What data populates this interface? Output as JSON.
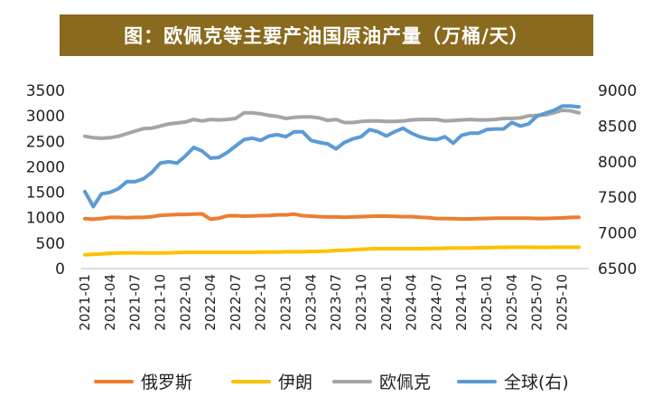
{
  "chart_data": {
    "type": "line",
    "title": "图：欧佩克等主要产油国原油产量（万桶/天）",
    "x": [
      "2021-01",
      "2021-02",
      "2021-03",
      "2021-04",
      "2021-05",
      "2021-06",
      "2021-07",
      "2021-08",
      "2021-09",
      "2021-10",
      "2021-11",
      "2021-12",
      "2022-01",
      "2022-02",
      "2022-03",
      "2022-04",
      "2022-05",
      "2022-06",
      "2022-07",
      "2022-08",
      "2022-09",
      "2022-10",
      "2022-11",
      "2022-12",
      "2023-01",
      "2023-02",
      "2023-03",
      "2023-04",
      "2023-05",
      "2023-06",
      "2023-07",
      "2023-08",
      "2023-09",
      "2023-10",
      "2023-11",
      "2023-12",
      "2024-01",
      "2024-02",
      "2024-03",
      "2024-04",
      "2024-05",
      "2024-06",
      "2024-07",
      "2024-08",
      "2024-09",
      "2024-10",
      "2024-11",
      "2024-12",
      "2025-01",
      "2025-02",
      "2025-03",
      "2025-04",
      "2025-05",
      "2025-06",
      "2025-07",
      "2025-08",
      "2025-09",
      "2025-10",
      "2025-11",
      "2025-12"
    ],
    "x_tick_labels": [
      "2021-01",
      "2021-04",
      "2021-07",
      "2021-10",
      "2022-01",
      "2022-04",
      "2022-07",
      "2022-10",
      "2023-01",
      "2023-04",
      "2023-07",
      "2023-10",
      "2024-01",
      "2024-04",
      "2024-07",
      "2024-10",
      "2025-01",
      "2025-04",
      "2025-07",
      "2025-10"
    ],
    "y_left": {
      "min": 0,
      "max": 3500,
      "step": 500,
      "ticks": [
        "0",
        "500",
        "1000",
        "1500",
        "2000",
        "2500",
        "3000",
        "3500"
      ]
    },
    "y_right": {
      "min": 6500,
      "max": 9000,
      "step": 500,
      "ticks": [
        "6500",
        "7000",
        "7500",
        "8000",
        "8500",
        "9000"
      ]
    },
    "series": [
      {
        "name": "俄罗斯",
        "axis": "left",
        "color": "#ed7d31",
        "values": [
          980,
          970,
          985,
          1005,
          1005,
          1000,
          1005,
          1005,
          1020,
          1045,
          1055,
          1060,
          1065,
          1070,
          1075,
          970,
          990,
          1035,
          1040,
          1030,
          1035,
          1040,
          1045,
          1055,
          1055,
          1070,
          1040,
          1030,
          1020,
          1015,
          1015,
          1010,
          1015,
          1020,
          1025,
          1030,
          1030,
          1025,
          1020,
          1020,
          1010,
          1000,
          985,
          980,
          980,
          975,
          978,
          980,
          985,
          990,
          990,
          990,
          990,
          990,
          985,
          985,
          990,
          995,
          1005,
          1010
        ]
      },
      {
        "name": "伊朗",
        "axis": "left",
        "color": "#ffc000",
        "values": [
          270,
          280,
          290,
          300,
          305,
          310,
          310,
          305,
          305,
          305,
          310,
          315,
          320,
          320,
          320,
          320,
          320,
          320,
          320,
          320,
          320,
          325,
          325,
          325,
          330,
          330,
          330,
          335,
          340,
          345,
          355,
          360,
          370,
          380,
          385,
          390,
          390,
          390,
          390,
          390,
          390,
          395,
          395,
          400,
          405,
          405,
          405,
          410,
          410,
          415,
          415,
          420,
          420,
          420,
          415,
          415,
          420,
          420,
          420,
          420
        ]
      },
      {
        "name": "欧佩克",
        "axis": "left",
        "color": "#a5a5a5",
        "values": [
          2600,
          2570,
          2560,
          2570,
          2600,
          2650,
          2700,
          2750,
          2760,
          2800,
          2840,
          2860,
          2880,
          2930,
          2900,
          2930,
          2920,
          2930,
          2950,
          3060,
          3060,
          3040,
          3010,
          2990,
          2950,
          2970,
          2980,
          2980,
          2960,
          2910,
          2930,
          2870,
          2870,
          2890,
          2900,
          2900,
          2890,
          2890,
          2900,
          2920,
          2930,
          2930,
          2930,
          2900,
          2910,
          2920,
          2930,
          2920,
          2920,
          2930,
          2950,
          2950,
          2960,
          3000,
          3010,
          3020,
          3060,
          3110,
          3100,
          3060
        ]
      },
      {
        "name": "全球(右)",
        "axis": "right",
        "color": "#5b9bd5",
        "values": [
          7580,
          7370,
          7550,
          7570,
          7620,
          7720,
          7720,
          7760,
          7850,
          7980,
          8000,
          7980,
          8080,
          8200,
          8150,
          8050,
          8060,
          8130,
          8220,
          8310,
          8330,
          8300,
          8360,
          8380,
          8350,
          8420,
          8420,
          8300,
          8270,
          8250,
          8180,
          8270,
          8320,
          8350,
          8450,
          8420,
          8360,
          8420,
          8470,
          8400,
          8350,
          8320,
          8310,
          8350,
          8260,
          8370,
          8400,
          8400,
          8450,
          8460,
          8460,
          8550,
          8500,
          8530,
          8640,
          8680,
          8720,
          8780,
          8780,
          8770
        ]
      }
    ],
    "legend": [
      "俄罗斯",
      "伊朗",
      "欧佩克",
      "全球(右)"
    ],
    "legend_position": "bottom",
    "grid": false
  }
}
